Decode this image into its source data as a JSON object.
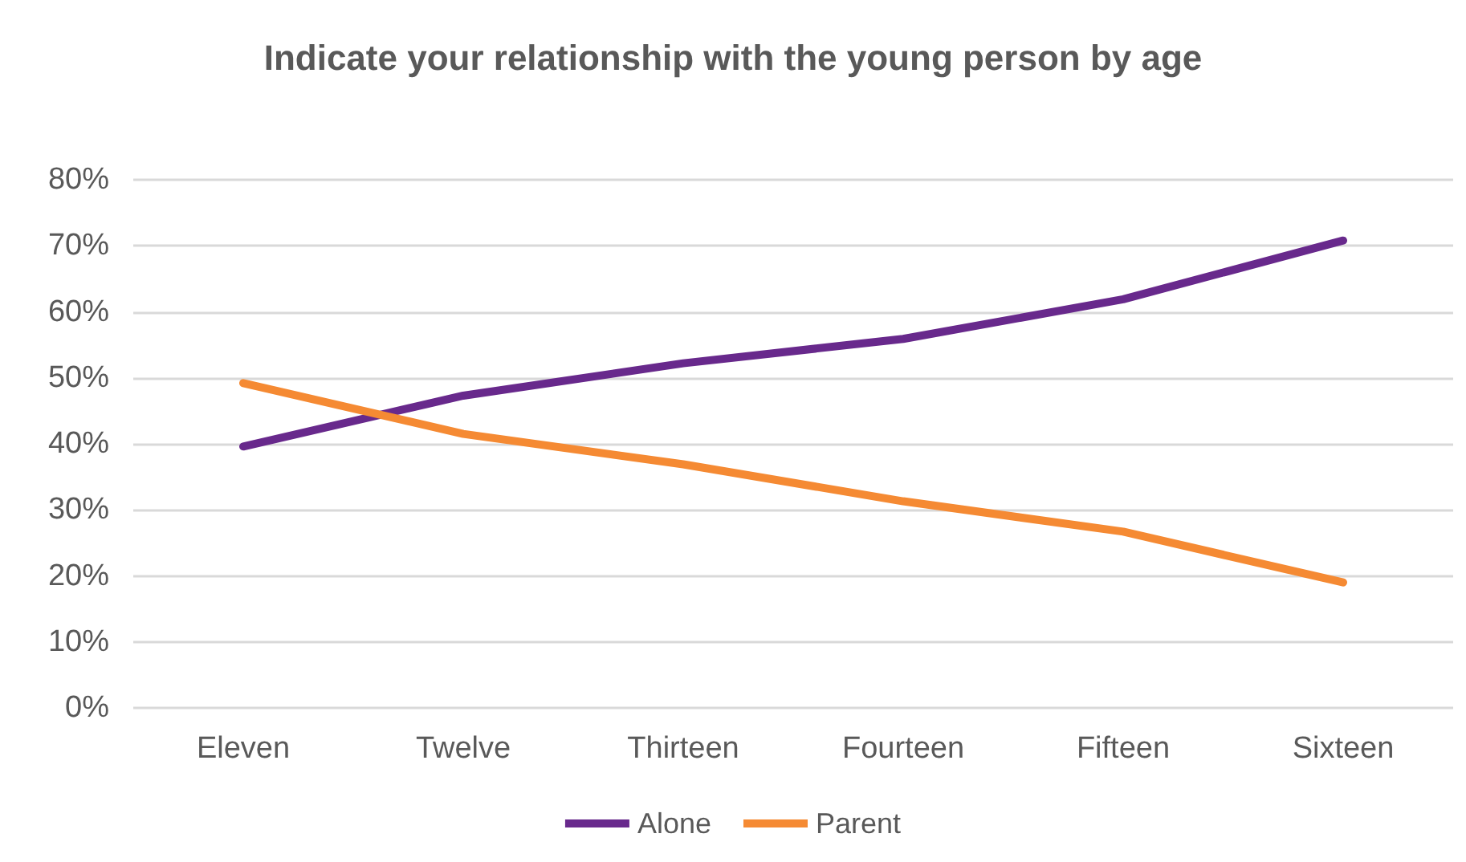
{
  "chart_data": {
    "type": "line",
    "title": "Indicate your relationship with the young person by age",
    "categories": [
      "Eleven",
      "Twelve",
      "Thirteen",
      "Fourteen",
      "Fifteen",
      "Sixteen"
    ],
    "series": [
      {
        "name": "Alone",
        "color": "#68298c",
        "values": [
          39.6,
          47.3,
          52.2,
          55.9,
          61.9,
          70.8
        ]
      },
      {
        "name": "Parent",
        "color": "#f58a33",
        "values": [
          49.2,
          41.5,
          36.9,
          31.3,
          26.7,
          19.0
        ]
      }
    ],
    "ylim": [
      0,
      80
    ],
    "yticks": [
      {
        "value": 0,
        "label": "0%"
      },
      {
        "value": 10,
        "label": "10%"
      },
      {
        "value": 20,
        "label": "20%"
      },
      {
        "value": 30,
        "label": "30%"
      },
      {
        "value": 40,
        "label": "40%"
      },
      {
        "value": 50,
        "label": "50%"
      },
      {
        "value": 60,
        "label": "60%"
      },
      {
        "value": 70,
        "label": "70%"
      },
      {
        "value": 80,
        "label": "80%"
      }
    ],
    "grid": "y",
    "legend": "bottom",
    "marker": "none",
    "line_style": "solid"
  }
}
